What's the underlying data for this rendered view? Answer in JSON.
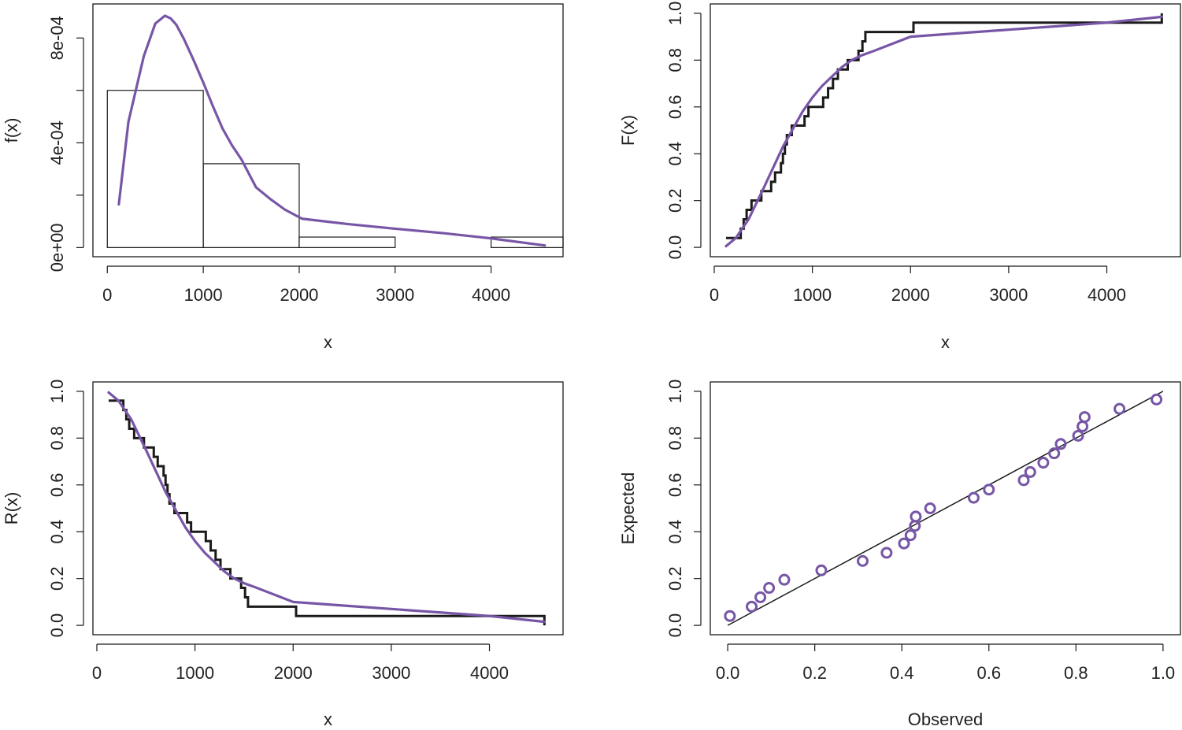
{
  "colors": {
    "fit": "#7756a6",
    "empirical": "#1a1a1a",
    "frame": "#1a1a1a",
    "points": "#7756a6"
  },
  "chart_data": [
    {
      "type": "histogram",
      "xlabel": "x",
      "ylabel": "f(x)",
      "xlim": [
        -150,
        4750
      ],
      "ylim": [
        -3.5e-05,
        0.00093
      ],
      "xticks": [
        0,
        1000,
        2000,
        3000,
        4000
      ],
      "xtick_labels": [
        "0",
        "1000",
        "2000",
        "3000",
        "4000"
      ],
      "yticks": [
        0,
        0.0002,
        0.0004,
        0.0006,
        0.0008
      ],
      "ytick_labels": [
        "0e+00",
        "",
        "4e-04",
        "",
        "8e-04"
      ],
      "bins": [
        {
          "x0": 0,
          "x1": 1000,
          "density": 0.0006
        },
        {
          "x0": 1000,
          "x1": 2000,
          "density": 0.00032
        },
        {
          "x0": 2000,
          "x1": 3000,
          "density": 4e-05
        },
        {
          "x0": 3000,
          "x1": 4000,
          "density": 0
        },
        {
          "x0": 4000,
          "x1": 5000,
          "density": 4e-05
        }
      ],
      "series": [
        {
          "style": "fitted-curve",
          "x": [
            120,
            220,
            380,
            500,
            600,
            660,
            720,
            800,
            900,
            1000,
            1100,
            1200,
            1300,
            1400,
            1550,
            1700,
            1850,
            2030,
            2500,
            3000,
            3500,
            4000,
            4560
          ],
          "y": [
            0.000165,
            0.00048,
            0.00073,
            0.000855,
            0.000885,
            0.000875,
            0.00085,
            0.000795,
            0.000715,
            0.00063,
            0.00054,
            0.000455,
            0.00039,
            0.000335,
            0.00023,
            0.000185,
            0.000145,
            0.00011,
            9e-05,
            7.2e-05,
            5.5e-05,
            3.5e-05,
            8e-06
          ]
        }
      ]
    },
    {
      "type": "line",
      "xlabel": "x",
      "ylabel": "F(x)",
      "xlim": [
        -40,
        4750
      ],
      "ylim": [
        -0.04,
        1.04
      ],
      "xticks": [
        0,
        1000,
        2000,
        3000,
        4000
      ],
      "xtick_labels": [
        "0",
        "1000",
        "2000",
        "3000",
        "4000"
      ],
      "yticks": [
        0,
        0.2,
        0.4,
        0.6,
        0.8,
        1.0
      ],
      "ytick_labels": [
        "0.0",
        "0.2",
        "0.4",
        "0.6",
        "0.8",
        "1.0"
      ],
      "series": [
        {
          "style": "empirical-step",
          "x": [
            120,
            240,
            270,
            300,
            330,
            380,
            480,
            530,
            580,
            620,
            680,
            700,
            720,
            740,
            790,
            860,
            920,
            960,
            1110,
            1160,
            1210,
            1260,
            1310,
            1360,
            1470,
            1510,
            1540,
            1560,
            2030,
            4560
          ],
          "y": [
            0.04,
            0.04,
            0.08,
            0.12,
            0.16,
            0.2,
            0.24,
            0.24,
            0.28,
            0.32,
            0.36,
            0.4,
            0.44,
            0.48,
            0.52,
            0.52,
            0.56,
            0.6,
            0.64,
            0.68,
            0.72,
            0.76,
            0.76,
            0.8,
            0.84,
            0.88,
            0.92,
            0.92,
            0.96,
            1.0
          ]
        },
        {
          "style": "fitted-curve",
          "x": [
            120,
            220,
            350,
            500,
            700,
            900,
            1000,
            1100,
            1200,
            1300,
            1400,
            1500,
            1600,
            2000,
            2500,
            3000,
            3500,
            4000,
            4560
          ],
          "y": [
            0.005,
            0.04,
            0.12,
            0.25,
            0.43,
            0.58,
            0.64,
            0.69,
            0.73,
            0.77,
            0.8,
            0.82,
            0.835,
            0.9,
            0.915,
            0.93,
            0.945,
            0.96,
            0.985
          ]
        }
      ]
    },
    {
      "type": "line",
      "xlabel": "x",
      "ylabel": "R(x)",
      "xlim": [
        -40,
        4750
      ],
      "ylim": [
        -0.04,
        1.04
      ],
      "xticks": [
        0,
        1000,
        2000,
        3000,
        4000
      ],
      "xtick_labels": [
        "0",
        "1000",
        "2000",
        "3000",
        "4000"
      ],
      "yticks": [
        0,
        0.2,
        0.4,
        0.6,
        0.8,
        1.0
      ],
      "ytick_labels": [
        "0.0",
        "0.2",
        "0.4",
        "0.6",
        "0.8",
        "1.0"
      ],
      "series": [
        {
          "style": "empirical-step",
          "x": [
            120,
            240,
            270,
            300,
            330,
            380,
            480,
            530,
            580,
            620,
            680,
            700,
            720,
            740,
            790,
            860,
            920,
            960,
            1110,
            1160,
            1210,
            1260,
            1310,
            1360,
            1470,
            1510,
            1540,
            1560,
            2030,
            4560
          ],
          "y": [
            0.96,
            0.96,
            0.92,
            0.88,
            0.84,
            0.8,
            0.76,
            0.76,
            0.72,
            0.68,
            0.64,
            0.6,
            0.56,
            0.52,
            0.48,
            0.48,
            0.44,
            0.4,
            0.36,
            0.32,
            0.28,
            0.24,
            0.24,
            0.2,
            0.16,
            0.12,
            0.08,
            0.08,
            0.04,
            0.0
          ]
        },
        {
          "style": "fitted-curve",
          "x": [
            120,
            220,
            350,
            500,
            700,
            900,
            1000,
            1100,
            1200,
            1300,
            1400,
            1500,
            1600,
            2000,
            2500,
            3000,
            3500,
            4000,
            4560
          ],
          "y": [
            0.995,
            0.96,
            0.88,
            0.75,
            0.57,
            0.42,
            0.36,
            0.31,
            0.27,
            0.23,
            0.2,
            0.18,
            0.165,
            0.1,
            0.085,
            0.07,
            0.055,
            0.04,
            0.015
          ]
        }
      ]
    },
    {
      "type": "scatter",
      "xlabel": "Observed",
      "ylabel": "Expected",
      "xlim": [
        -0.04,
        1.04
      ],
      "ylim": [
        -0.04,
        1.04
      ],
      "xticks": [
        0,
        0.2,
        0.4,
        0.6,
        0.8,
        1.0
      ],
      "xtick_labels": [
        "0.0",
        "0.2",
        "0.4",
        "0.6",
        "0.8",
        "1.0"
      ],
      "yticks": [
        0,
        0.2,
        0.4,
        0.6,
        0.8,
        1.0
      ],
      "ytick_labels": [
        "0.0",
        "0.2",
        "0.4",
        "0.6",
        "0.8",
        "1.0"
      ],
      "reference_line": {
        "x": [
          0,
          1
        ],
        "y": [
          0,
          1
        ]
      },
      "points": {
        "x": [
          0.005,
          0.055,
          0.075,
          0.095,
          0.13,
          0.215,
          0.31,
          0.365,
          0.405,
          0.42,
          0.43,
          0.432,
          0.465,
          0.565,
          0.6,
          0.68,
          0.695,
          0.725,
          0.75,
          0.765,
          0.805,
          0.815,
          0.82,
          0.9,
          0.985
        ],
        "y": [
          0.04,
          0.08,
          0.12,
          0.16,
          0.195,
          0.235,
          0.275,
          0.31,
          0.35,
          0.385,
          0.425,
          0.465,
          0.5,
          0.545,
          0.58,
          0.62,
          0.655,
          0.695,
          0.735,
          0.775,
          0.81,
          0.85,
          0.89,
          0.925,
          0.965
        ]
      }
    }
  ]
}
